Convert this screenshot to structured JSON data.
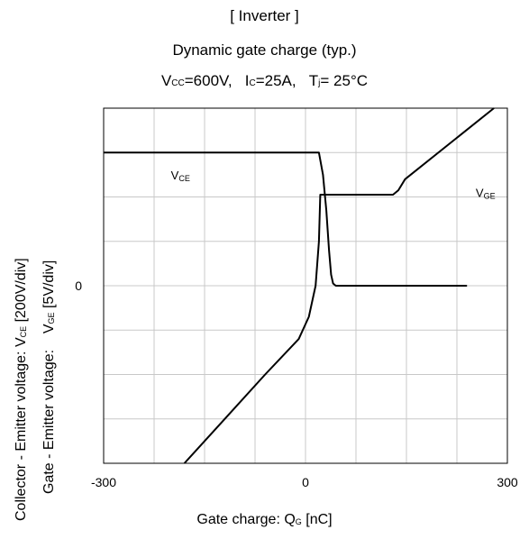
{
  "chart_data": {
    "type": "line",
    "title_lines": [
      "[ Inverter ]",
      "Dynamic gate charge  (typ.)"
    ],
    "conditions": {
      "vcc_sym": "V",
      "vcc_sub": "CC",
      "vcc_val": "=600V,",
      "ic_sym": "I",
      "ic_sub": "C",
      "ic_val": "=25A,",
      "tj_sym": "T",
      "tj_sub": "j",
      "tj_val": "= 25°C"
    },
    "xlabel": {
      "prefix": "Gate charge: Q",
      "sub": "G",
      "suffix": " [nC]"
    },
    "ylabel": {
      "line1": {
        "prefix": "Collector - Emitter voltage: V",
        "sub": "CE",
        "suffix": " [200V/div]"
      },
      "line2": {
        "prefix": "Gate - Emitter voltage:    V",
        "sub": "GE",
        "suffix": " [5V/div]"
      }
    },
    "x_ticks": [
      "-300",
      "0",
      "300"
    ],
    "y_tick": "0",
    "xlim": [
      -300,
      300
    ],
    "ylim_divs": [
      -4,
      4
    ],
    "grid": true,
    "series": [
      {
        "name_sym": "V",
        "name_sub": "CE",
        "label_at": [
          -200,
          2.4
        ],
        "points": [
          [
            -300,
            3.0
          ],
          [
            20,
            3.0
          ],
          [
            26,
            2.5
          ],
          [
            31,
            1.7
          ],
          [
            35,
            0.8
          ],
          [
            38,
            0.25
          ],
          [
            41,
            0.05
          ],
          [
            45,
            0.0
          ],
          [
            240,
            0.0
          ]
        ]
      },
      {
        "name_sym": "V",
        "name_sub": "GE",
        "label_at": [
          253,
          2.0
        ],
        "points": [
          [
            -180,
            -4.0
          ],
          [
            -120,
            -3.0
          ],
          [
            -60,
            -2.0
          ],
          [
            -10,
            -1.2
          ],
          [
            5,
            -0.7
          ],
          [
            15,
            0.0
          ],
          [
            20,
            1.0
          ],
          [
            22,
            2.05
          ],
          [
            30,
            2.05
          ],
          [
            130,
            2.05
          ],
          [
            138,
            2.15
          ],
          [
            148,
            2.4
          ],
          [
            280,
            4.0
          ]
        ]
      }
    ]
  }
}
